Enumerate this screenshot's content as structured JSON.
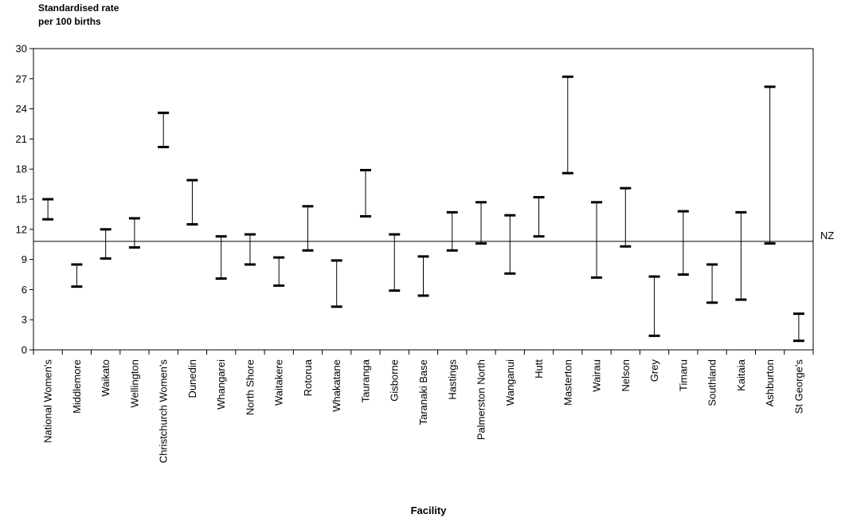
{
  "chart_data": {
    "type": "errorbar",
    "ylabel_lines": [
      "Standardised rate",
      "per 100 births"
    ],
    "xlabel": "Facility",
    "ylim": [
      0,
      30
    ],
    "yticks": [
      0,
      3,
      6,
      9,
      12,
      15,
      18,
      21,
      24,
      27,
      30
    ],
    "grid": false,
    "reference_line": {
      "label": "NZ",
      "value": 10.8
    },
    "categories": [
      "National Women's",
      "Middlemore",
      "Waikato",
      "Wellington",
      "Christchurch Women's",
      "Dunedin",
      "Whangarei",
      "North Shore",
      "Waitakere",
      "Rotorua",
      "Whakatane",
      "Tauranga",
      "Gisborne",
      "Taranaki Base",
      "Hastings",
      "Palmerston North",
      "Wanganui",
      "Hutt",
      "Masterton",
      "Wairau",
      "Nelson",
      "Grey",
      "Timaru",
      "Southland",
      "Kaitaia",
      "Ashburton",
      "St George's"
    ],
    "lower": [
      13.0,
      6.3,
      9.1,
      10.2,
      20.2,
      12.5,
      7.1,
      8.5,
      6.4,
      9.9,
      4.3,
      13.3,
      5.9,
      5.4,
      9.9,
      10.6,
      7.6,
      11.3,
      17.6,
      7.2,
      10.3,
      1.4,
      7.5,
      4.7,
      5.0,
      10.6,
      0.9
    ],
    "upper": [
      15.0,
      8.5,
      12.0,
      13.1,
      23.6,
      16.9,
      11.3,
      11.5,
      9.2,
      14.3,
      8.9,
      17.9,
      11.5,
      9.3,
      13.7,
      14.7,
      13.4,
      15.2,
      27.2,
      14.7,
      16.1,
      7.3,
      13.8,
      8.5,
      13.7,
      26.2,
      3.6
    ]
  }
}
